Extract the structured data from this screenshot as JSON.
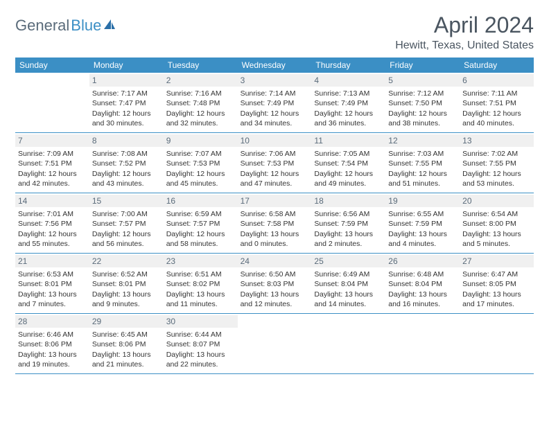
{
  "logo": {
    "text1": "General",
    "text2": "Blue"
  },
  "title": "April 2024",
  "location": "Hewitt, Texas, United States",
  "colors": {
    "header_bg": "#3b8fc5",
    "header_text": "#ffffff",
    "daynum_bg": "#f0f0f0",
    "daynum_text": "#5a6b7a",
    "cell_text": "#333333",
    "border": "#3b8fc5",
    "title_text": "#4a5560"
  },
  "day_headers": [
    "Sunday",
    "Monday",
    "Tuesday",
    "Wednesday",
    "Thursday",
    "Friday",
    "Saturday"
  ],
  "weeks": [
    [
      {
        "n": "",
        "sr": "",
        "ss": "",
        "dl1": "",
        "dl2": ""
      },
      {
        "n": "1",
        "sr": "Sunrise: 7:17 AM",
        "ss": "Sunset: 7:47 PM",
        "dl1": "Daylight: 12 hours",
        "dl2": "and 30 minutes."
      },
      {
        "n": "2",
        "sr": "Sunrise: 7:16 AM",
        "ss": "Sunset: 7:48 PM",
        "dl1": "Daylight: 12 hours",
        "dl2": "and 32 minutes."
      },
      {
        "n": "3",
        "sr": "Sunrise: 7:14 AM",
        "ss": "Sunset: 7:49 PM",
        "dl1": "Daylight: 12 hours",
        "dl2": "and 34 minutes."
      },
      {
        "n": "4",
        "sr": "Sunrise: 7:13 AM",
        "ss": "Sunset: 7:49 PM",
        "dl1": "Daylight: 12 hours",
        "dl2": "and 36 minutes."
      },
      {
        "n": "5",
        "sr": "Sunrise: 7:12 AM",
        "ss": "Sunset: 7:50 PM",
        "dl1": "Daylight: 12 hours",
        "dl2": "and 38 minutes."
      },
      {
        "n": "6",
        "sr": "Sunrise: 7:11 AM",
        "ss": "Sunset: 7:51 PM",
        "dl1": "Daylight: 12 hours",
        "dl2": "and 40 minutes."
      }
    ],
    [
      {
        "n": "7",
        "sr": "Sunrise: 7:09 AM",
        "ss": "Sunset: 7:51 PM",
        "dl1": "Daylight: 12 hours",
        "dl2": "and 42 minutes."
      },
      {
        "n": "8",
        "sr": "Sunrise: 7:08 AM",
        "ss": "Sunset: 7:52 PM",
        "dl1": "Daylight: 12 hours",
        "dl2": "and 43 minutes."
      },
      {
        "n": "9",
        "sr": "Sunrise: 7:07 AM",
        "ss": "Sunset: 7:53 PM",
        "dl1": "Daylight: 12 hours",
        "dl2": "and 45 minutes."
      },
      {
        "n": "10",
        "sr": "Sunrise: 7:06 AM",
        "ss": "Sunset: 7:53 PM",
        "dl1": "Daylight: 12 hours",
        "dl2": "and 47 minutes."
      },
      {
        "n": "11",
        "sr": "Sunrise: 7:05 AM",
        "ss": "Sunset: 7:54 PM",
        "dl1": "Daylight: 12 hours",
        "dl2": "and 49 minutes."
      },
      {
        "n": "12",
        "sr": "Sunrise: 7:03 AM",
        "ss": "Sunset: 7:55 PM",
        "dl1": "Daylight: 12 hours",
        "dl2": "and 51 minutes."
      },
      {
        "n": "13",
        "sr": "Sunrise: 7:02 AM",
        "ss": "Sunset: 7:55 PM",
        "dl1": "Daylight: 12 hours",
        "dl2": "and 53 minutes."
      }
    ],
    [
      {
        "n": "14",
        "sr": "Sunrise: 7:01 AM",
        "ss": "Sunset: 7:56 PM",
        "dl1": "Daylight: 12 hours",
        "dl2": "and 55 minutes."
      },
      {
        "n": "15",
        "sr": "Sunrise: 7:00 AM",
        "ss": "Sunset: 7:57 PM",
        "dl1": "Daylight: 12 hours",
        "dl2": "and 56 minutes."
      },
      {
        "n": "16",
        "sr": "Sunrise: 6:59 AM",
        "ss": "Sunset: 7:57 PM",
        "dl1": "Daylight: 12 hours",
        "dl2": "and 58 minutes."
      },
      {
        "n": "17",
        "sr": "Sunrise: 6:58 AM",
        "ss": "Sunset: 7:58 PM",
        "dl1": "Daylight: 13 hours",
        "dl2": "and 0 minutes."
      },
      {
        "n": "18",
        "sr": "Sunrise: 6:56 AM",
        "ss": "Sunset: 7:59 PM",
        "dl1": "Daylight: 13 hours",
        "dl2": "and 2 minutes."
      },
      {
        "n": "19",
        "sr": "Sunrise: 6:55 AM",
        "ss": "Sunset: 7:59 PM",
        "dl1": "Daylight: 13 hours",
        "dl2": "and 4 minutes."
      },
      {
        "n": "20",
        "sr": "Sunrise: 6:54 AM",
        "ss": "Sunset: 8:00 PM",
        "dl1": "Daylight: 13 hours",
        "dl2": "and 5 minutes."
      }
    ],
    [
      {
        "n": "21",
        "sr": "Sunrise: 6:53 AM",
        "ss": "Sunset: 8:01 PM",
        "dl1": "Daylight: 13 hours",
        "dl2": "and 7 minutes."
      },
      {
        "n": "22",
        "sr": "Sunrise: 6:52 AM",
        "ss": "Sunset: 8:01 PM",
        "dl1": "Daylight: 13 hours",
        "dl2": "and 9 minutes."
      },
      {
        "n": "23",
        "sr": "Sunrise: 6:51 AM",
        "ss": "Sunset: 8:02 PM",
        "dl1": "Daylight: 13 hours",
        "dl2": "and 11 minutes."
      },
      {
        "n": "24",
        "sr": "Sunrise: 6:50 AM",
        "ss": "Sunset: 8:03 PM",
        "dl1": "Daylight: 13 hours",
        "dl2": "and 12 minutes."
      },
      {
        "n": "25",
        "sr": "Sunrise: 6:49 AM",
        "ss": "Sunset: 8:04 PM",
        "dl1": "Daylight: 13 hours",
        "dl2": "and 14 minutes."
      },
      {
        "n": "26",
        "sr": "Sunrise: 6:48 AM",
        "ss": "Sunset: 8:04 PM",
        "dl1": "Daylight: 13 hours",
        "dl2": "and 16 minutes."
      },
      {
        "n": "27",
        "sr": "Sunrise: 6:47 AM",
        "ss": "Sunset: 8:05 PM",
        "dl1": "Daylight: 13 hours",
        "dl2": "and 17 minutes."
      }
    ],
    [
      {
        "n": "28",
        "sr": "Sunrise: 6:46 AM",
        "ss": "Sunset: 8:06 PM",
        "dl1": "Daylight: 13 hours",
        "dl2": "and 19 minutes."
      },
      {
        "n": "29",
        "sr": "Sunrise: 6:45 AM",
        "ss": "Sunset: 8:06 PM",
        "dl1": "Daylight: 13 hours",
        "dl2": "and 21 minutes."
      },
      {
        "n": "30",
        "sr": "Sunrise: 6:44 AM",
        "ss": "Sunset: 8:07 PM",
        "dl1": "Daylight: 13 hours",
        "dl2": "and 22 minutes."
      },
      {
        "n": "",
        "sr": "",
        "ss": "",
        "dl1": "",
        "dl2": ""
      },
      {
        "n": "",
        "sr": "",
        "ss": "",
        "dl1": "",
        "dl2": ""
      },
      {
        "n": "",
        "sr": "",
        "ss": "",
        "dl1": "",
        "dl2": ""
      },
      {
        "n": "",
        "sr": "",
        "ss": "",
        "dl1": "",
        "dl2": ""
      }
    ]
  ]
}
